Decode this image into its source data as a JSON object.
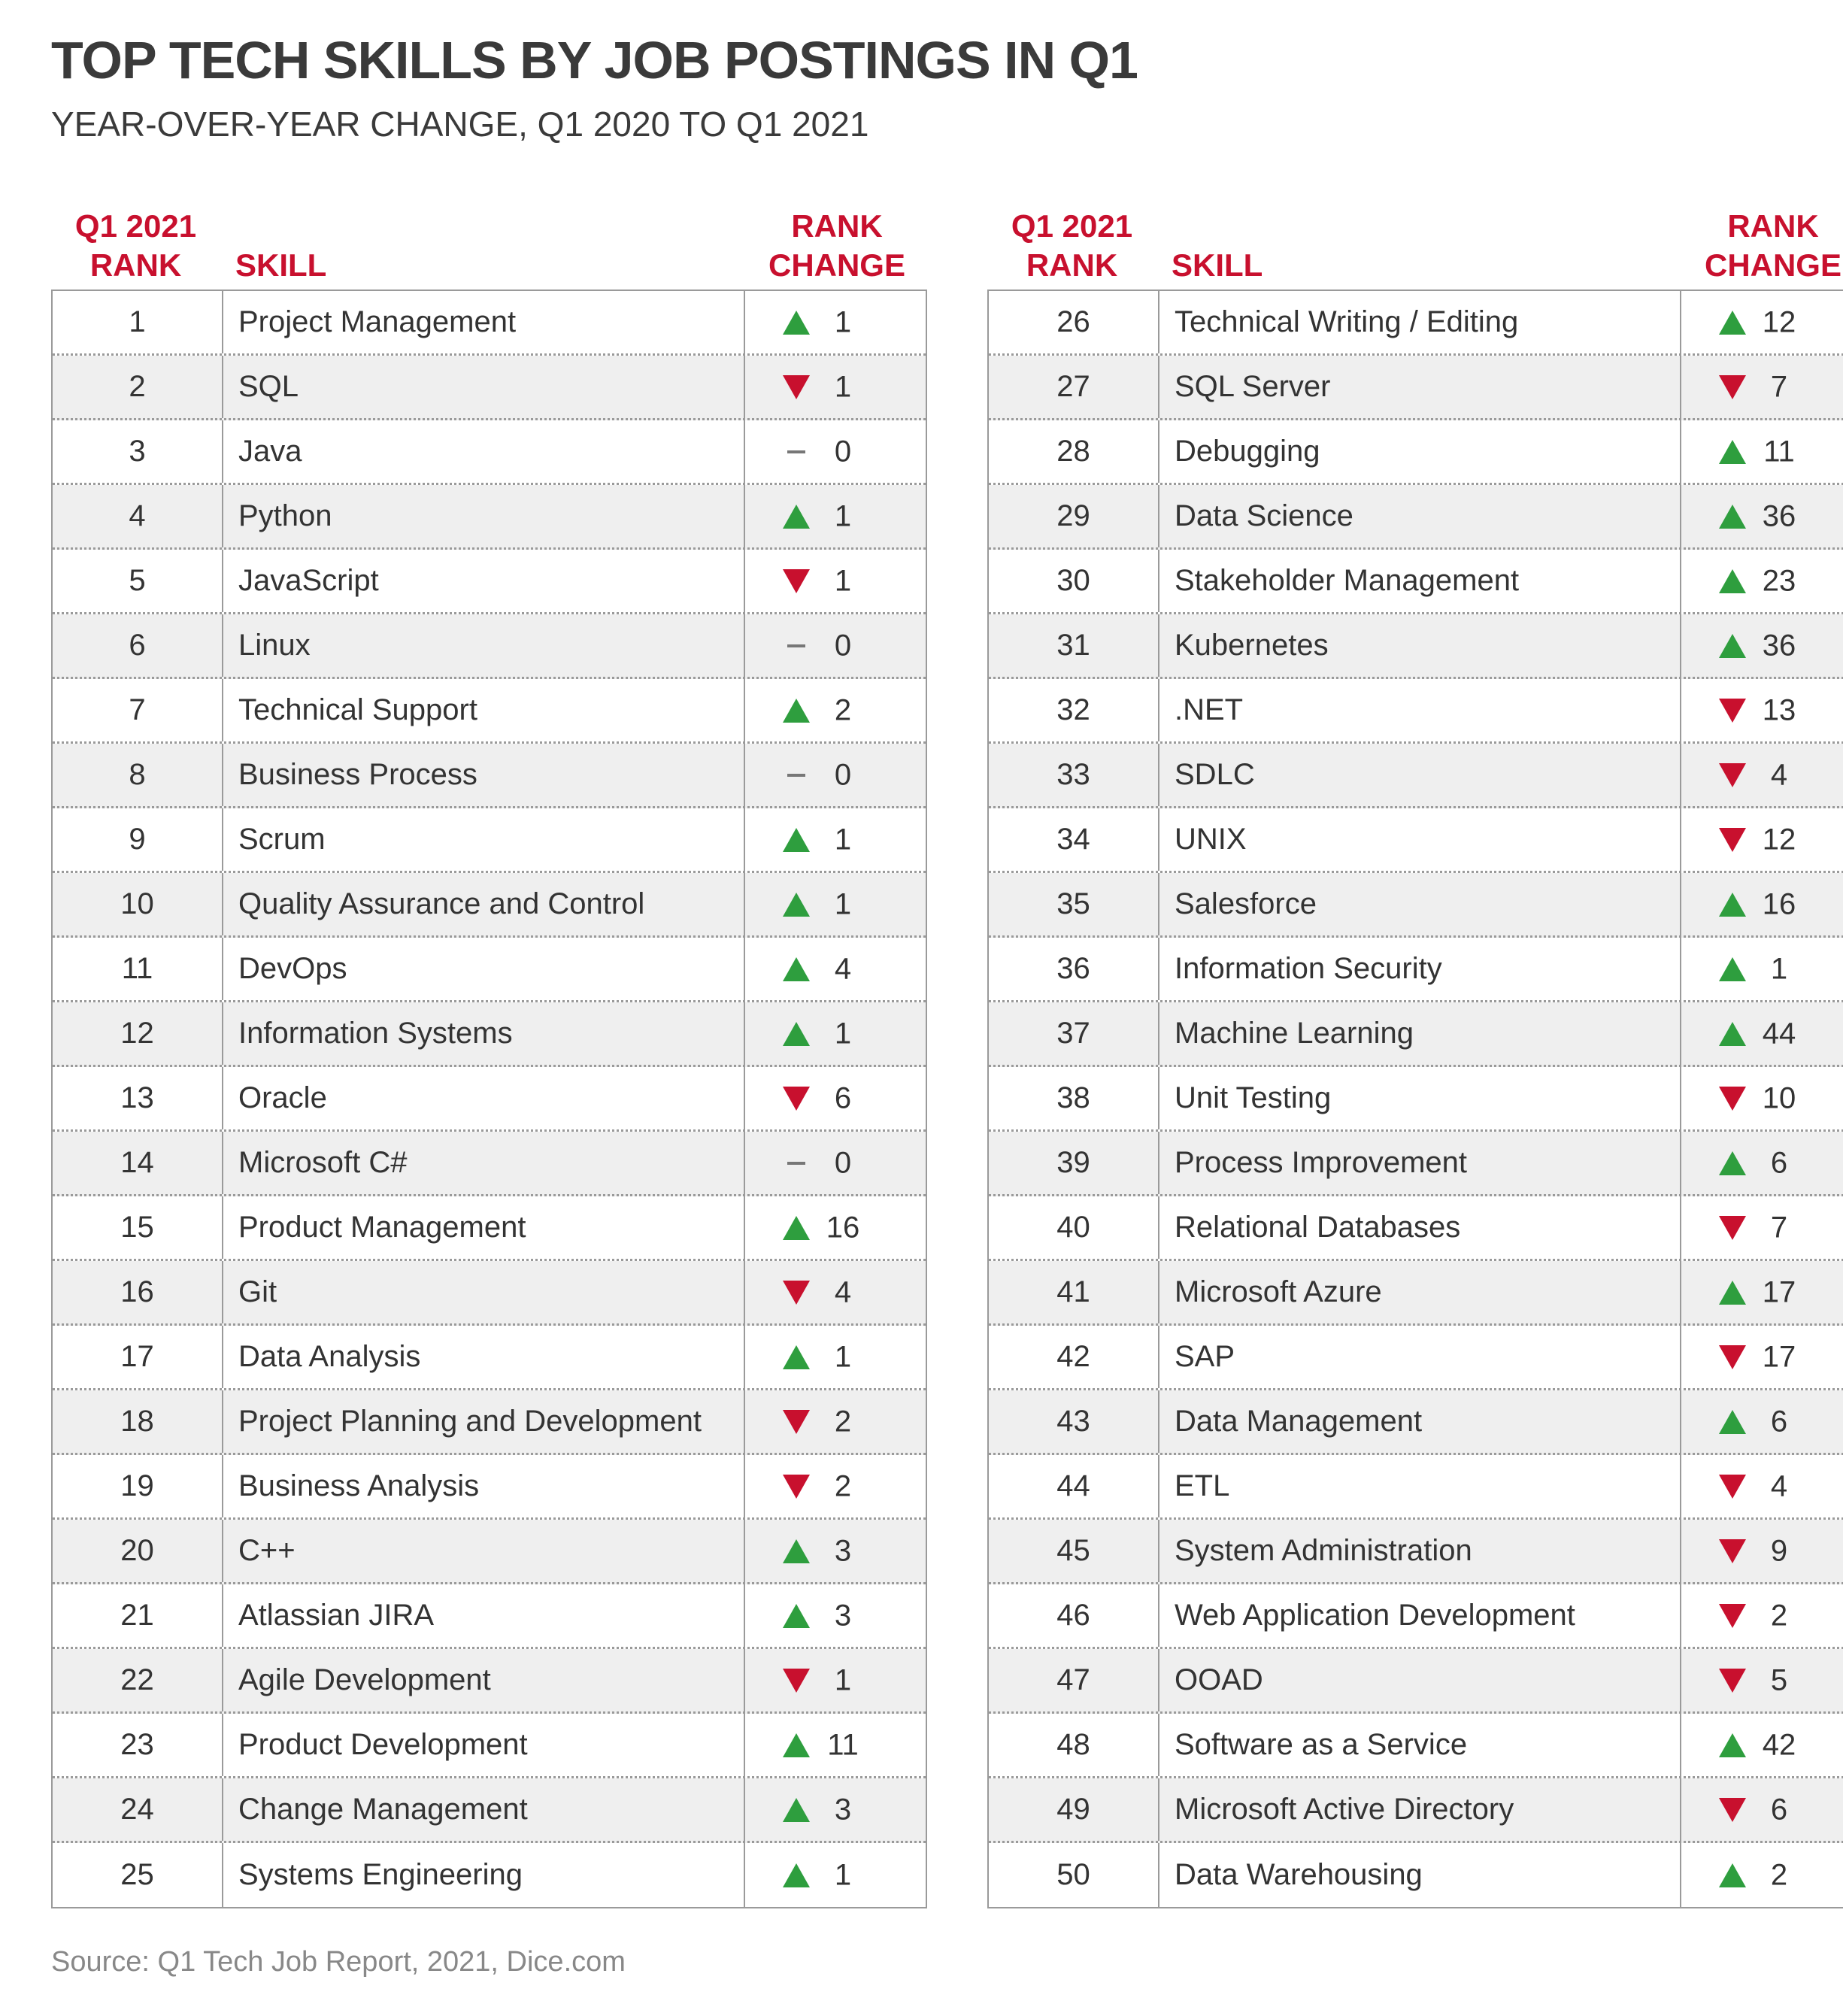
{
  "title": "TOP TECH SKILLS BY JOB POSTINGS IN Q1",
  "subtitle": "YEAR-OVER-YEAR CHANGE, Q1 2020 TO Q1 2021",
  "headers": {
    "rank_line1": "Q1 2021",
    "rank_line2": "RANK",
    "skill": "SKILL",
    "change_line1": "RANK",
    "change_line2": "CHANGE"
  },
  "source": "Source: Q1 Tech Job Report, 2021, Dice.com",
  "colors": {
    "up": "#2e9e3e",
    "down": "#c8102e",
    "header": "#c8102e",
    "flat": "#777777"
  },
  "chart_data": {
    "type": "table",
    "title": "TOP TECH SKILLS BY JOB POSTINGS IN Q1",
    "subtitle": "YEAR-OVER-YEAR CHANGE, Q1 2020 TO Q1 2021",
    "columns": [
      "Q1 2021 RANK",
      "SKILL",
      "RANK CHANGE"
    ],
    "rows": [
      {
        "rank": 1,
        "skill": "Project Management",
        "dir": "up",
        "change": 1
      },
      {
        "rank": 2,
        "skill": "SQL",
        "dir": "down",
        "change": 1
      },
      {
        "rank": 3,
        "skill": "Java",
        "dir": "flat",
        "change": 0
      },
      {
        "rank": 4,
        "skill": "Python",
        "dir": "up",
        "change": 1
      },
      {
        "rank": 5,
        "skill": "JavaScript",
        "dir": "down",
        "change": 1
      },
      {
        "rank": 6,
        "skill": "Linux",
        "dir": "flat",
        "change": 0
      },
      {
        "rank": 7,
        "skill": "Technical Support",
        "dir": "up",
        "change": 2
      },
      {
        "rank": 8,
        "skill": "Business Process",
        "dir": "flat",
        "change": 0
      },
      {
        "rank": 9,
        "skill": "Scrum",
        "dir": "up",
        "change": 1
      },
      {
        "rank": 10,
        "skill": "Quality Assurance and Control",
        "dir": "up",
        "change": 1
      },
      {
        "rank": 11,
        "skill": "DevOps",
        "dir": "up",
        "change": 4
      },
      {
        "rank": 12,
        "skill": "Information Systems",
        "dir": "up",
        "change": 1
      },
      {
        "rank": 13,
        "skill": "Oracle",
        "dir": "down",
        "change": 6
      },
      {
        "rank": 14,
        "skill": "Microsoft C#",
        "dir": "flat",
        "change": 0
      },
      {
        "rank": 15,
        "skill": "Product Management",
        "dir": "up",
        "change": 16
      },
      {
        "rank": 16,
        "skill": "Git",
        "dir": "down",
        "change": 4
      },
      {
        "rank": 17,
        "skill": "Data Analysis",
        "dir": "up",
        "change": 1
      },
      {
        "rank": 18,
        "skill": "Project Planning and Development",
        "dir": "down",
        "change": 2
      },
      {
        "rank": 19,
        "skill": "Business Analysis",
        "dir": "down",
        "change": 2
      },
      {
        "rank": 20,
        "skill": "C++",
        "dir": "up",
        "change": 3
      },
      {
        "rank": 21,
        "skill": "Atlassian JIRA",
        "dir": "up",
        "change": 3
      },
      {
        "rank": 22,
        "skill": "Agile Development",
        "dir": "down",
        "change": 1
      },
      {
        "rank": 23,
        "skill": "Product Development",
        "dir": "up",
        "change": 11
      },
      {
        "rank": 24,
        "skill": "Change Management",
        "dir": "up",
        "change": 3
      },
      {
        "rank": 25,
        "skill": "Systems Engineering",
        "dir": "up",
        "change": 1
      },
      {
        "rank": 26,
        "skill": "Technical Writing / Editing",
        "dir": "up",
        "change": 12
      },
      {
        "rank": 27,
        "skill": "SQL Server",
        "dir": "down",
        "change": 7
      },
      {
        "rank": 28,
        "skill": "Debugging",
        "dir": "up",
        "change": 11
      },
      {
        "rank": 29,
        "skill": "Data Science",
        "dir": "up",
        "change": 36
      },
      {
        "rank": 30,
        "skill": "Stakeholder Management",
        "dir": "up",
        "change": 23
      },
      {
        "rank": 31,
        "skill": "Kubernetes",
        "dir": "up",
        "change": 36
      },
      {
        "rank": 32,
        "skill": ".NET",
        "dir": "down",
        "change": 13
      },
      {
        "rank": 33,
        "skill": "SDLC",
        "dir": "down",
        "change": 4
      },
      {
        "rank": 34,
        "skill": "UNIX",
        "dir": "down",
        "change": 12
      },
      {
        "rank": 35,
        "skill": "Salesforce",
        "dir": "up",
        "change": 16
      },
      {
        "rank": 36,
        "skill": "Information Security",
        "dir": "up",
        "change": 1
      },
      {
        "rank": 37,
        "skill": "Machine Learning",
        "dir": "up",
        "change": 44
      },
      {
        "rank": 38,
        "skill": "Unit Testing",
        "dir": "down",
        "change": 10
      },
      {
        "rank": 39,
        "skill": "Process Improvement",
        "dir": "up",
        "change": 6
      },
      {
        "rank": 40,
        "skill": "Relational Databases",
        "dir": "down",
        "change": 7
      },
      {
        "rank": 41,
        "skill": "Microsoft Azure",
        "dir": "up",
        "change": 17
      },
      {
        "rank": 42,
        "skill": "SAP",
        "dir": "down",
        "change": 17
      },
      {
        "rank": 43,
        "skill": "Data Management",
        "dir": "up",
        "change": 6
      },
      {
        "rank": 44,
        "skill": "ETL",
        "dir": "down",
        "change": 4
      },
      {
        "rank": 45,
        "skill": "System Administration",
        "dir": "down",
        "change": 9
      },
      {
        "rank": 46,
        "skill": "Web Application Development",
        "dir": "down",
        "change": 2
      },
      {
        "rank": 47,
        "skill": "OOAD",
        "dir": "down",
        "change": 5
      },
      {
        "rank": 48,
        "skill": "Software as a Service",
        "dir": "up",
        "change": 42
      },
      {
        "rank": 49,
        "skill": "Microsoft Active Directory",
        "dir": "down",
        "change": 6
      },
      {
        "rank": 50,
        "skill": "Data Warehousing",
        "dir": "up",
        "change": 2
      }
    ]
  }
}
